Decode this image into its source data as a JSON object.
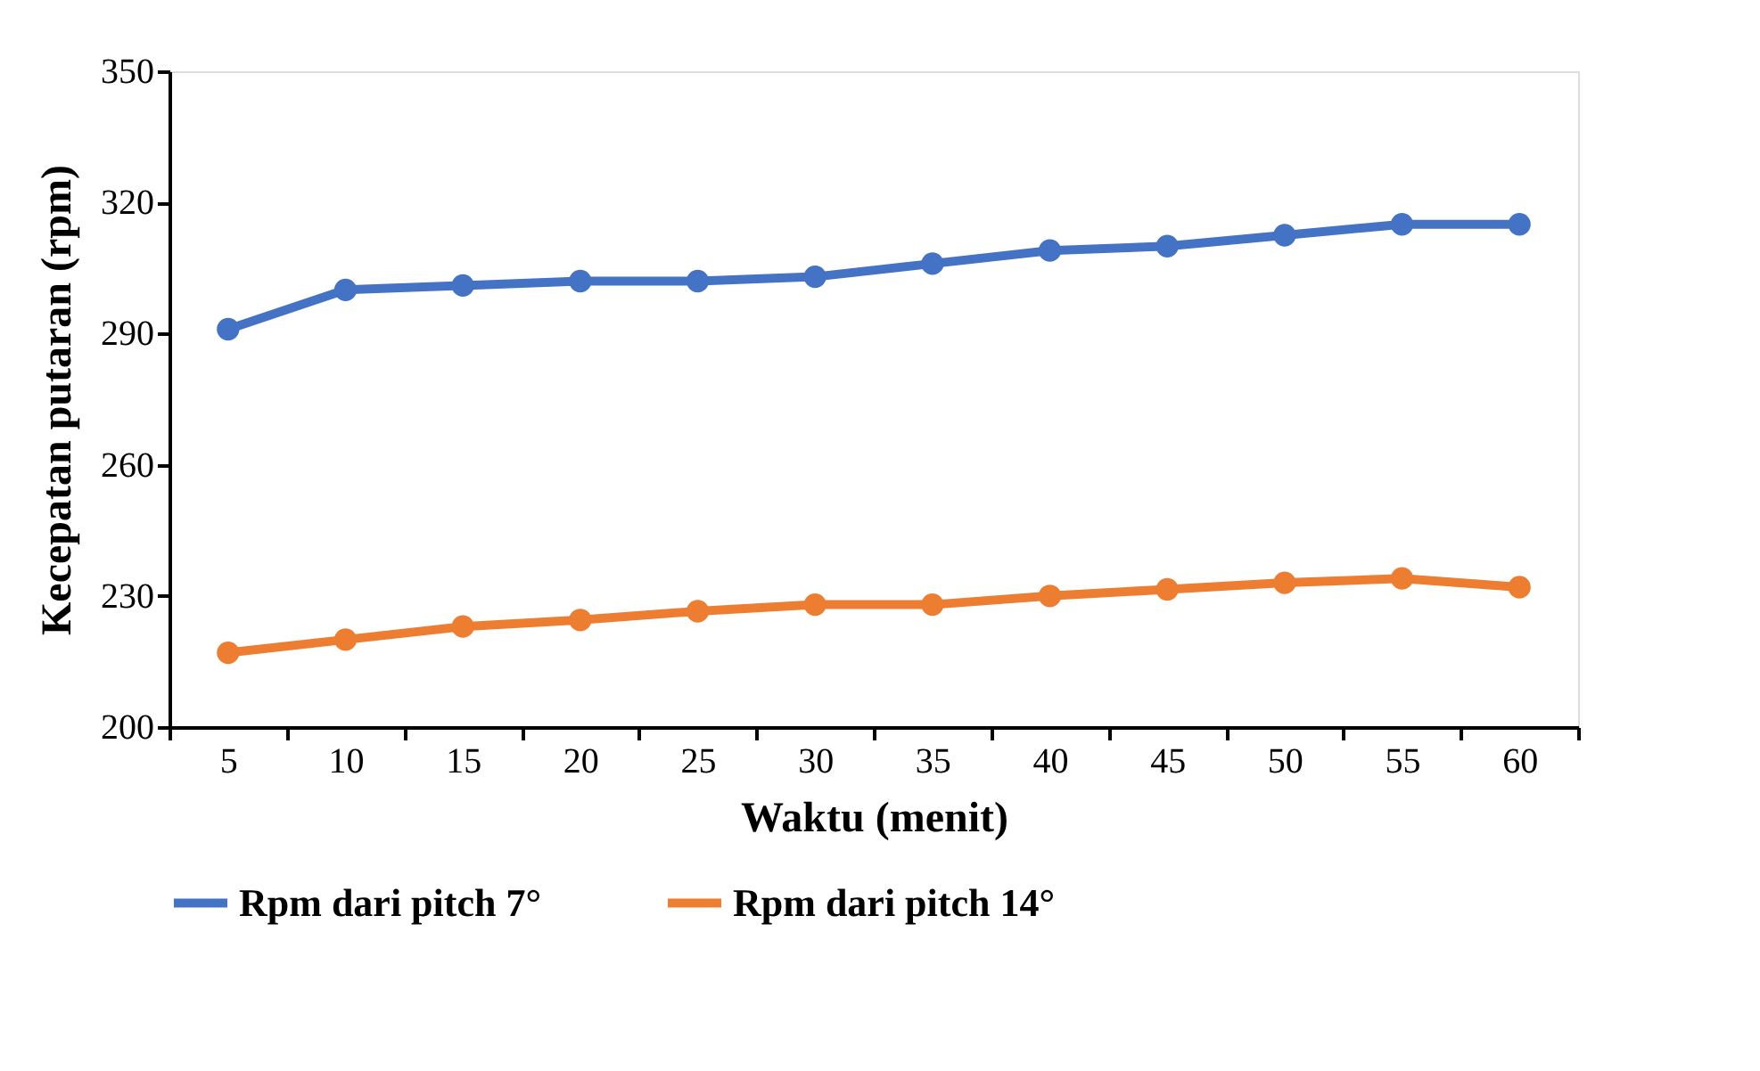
{
  "chart_data": {
    "type": "line",
    "xlabel": "Waktu (menit)",
    "ylabel": "Kecepatan putaran (rpm)",
    "categories": [
      "5",
      "10",
      "15",
      "20",
      "25",
      "30",
      "35",
      "40",
      "45",
      "50",
      "55",
      "60"
    ],
    "series": [
      {
        "name": "Rpm dari pitch 7°",
        "color": "#4472c4",
        "values": [
          291,
          300,
          301,
          302,
          302,
          303,
          306,
          309,
          310,
          312.5,
          315,
          315
        ]
      },
      {
        "name": "Rpm dari pitch 14°",
        "color": "#ed7d31",
        "values": [
          217,
          220,
          223,
          224.5,
          226.5,
          228,
          228,
          230,
          231.5,
          233,
          234,
          232
        ]
      }
    ],
    "ylim": [
      200,
      350
    ],
    "yticks": [
      200,
      230,
      260,
      290,
      320,
      350
    ],
    "grid": false,
    "legend": "bottom",
    "marker": "circle",
    "line_style": "solid"
  }
}
